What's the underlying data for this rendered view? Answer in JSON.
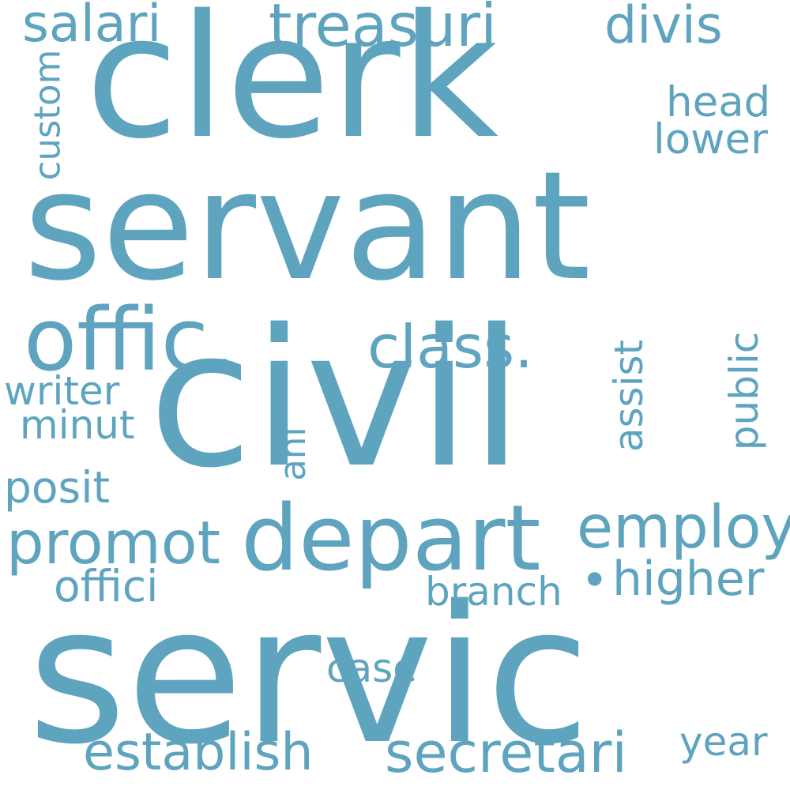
{
  "color": "#5fa4bf",
  "words": [
    {
      "text": "clerk"
    },
    {
      "text": "servant"
    },
    {
      "text": "civil"
    },
    {
      "text": "servic"
    },
    {
      "text": "offic."
    },
    {
      "text": "depart"
    },
    {
      "text": "class."
    },
    {
      "text": "treasuri"
    },
    {
      "text": "salari"
    },
    {
      "text": "divis"
    },
    {
      "text": "head"
    },
    {
      "text": "lower"
    },
    {
      "text": "custom"
    },
    {
      "text": "writer"
    },
    {
      "text": "minut"
    },
    {
      "text": "posit"
    },
    {
      "text": "promot"
    },
    {
      "text": "offici"
    },
    {
      "text": "ani"
    },
    {
      "text": "assist"
    },
    {
      "text": "public"
    },
    {
      "text": "employ"
    },
    {
      "text": "higher"
    },
    {
      "text": "branch"
    },
    {
      "text": "case"
    },
    {
      "text": "establish"
    },
    {
      "text": "secretari"
    },
    {
      "text": "year"
    },
    {
      "text": "•"
    }
  ]
}
